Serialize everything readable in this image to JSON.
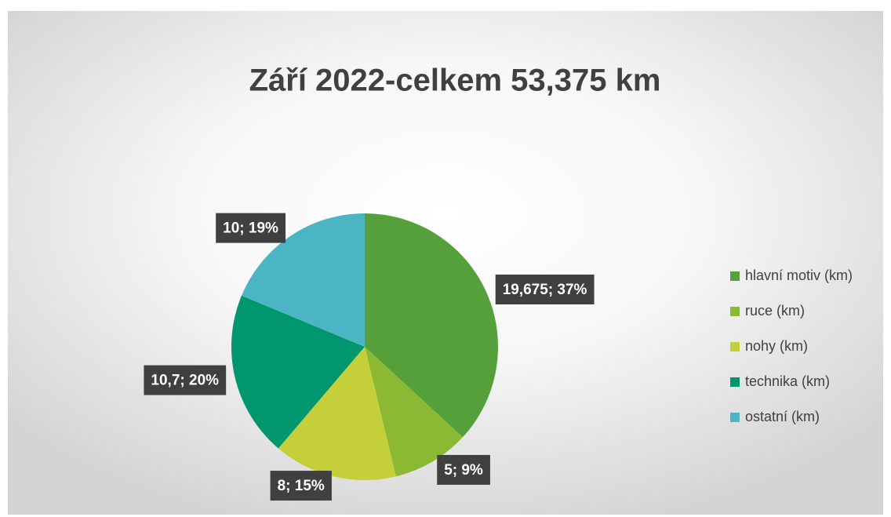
{
  "chart_data": {
    "type": "pie",
    "title": "Září 2022-celkem 53,375 km",
    "categories": [
      "hlavní motiv (km)",
      "ruce (km)",
      "nohy (km)",
      "technika (km)",
      "ostatní (km)"
    ],
    "values": [
      19.675,
      5,
      8,
      10.7,
      10
    ],
    "value_labels": [
      "19,675; 37%",
      "5; 9%",
      "8; 15%",
      "10,7; 20%",
      "10; 19%"
    ],
    "colors": [
      "#55a03a",
      "#8cb933",
      "#c4cf3a",
      "#00976f",
      "#4bb5c4"
    ],
    "legend": "right"
  }
}
